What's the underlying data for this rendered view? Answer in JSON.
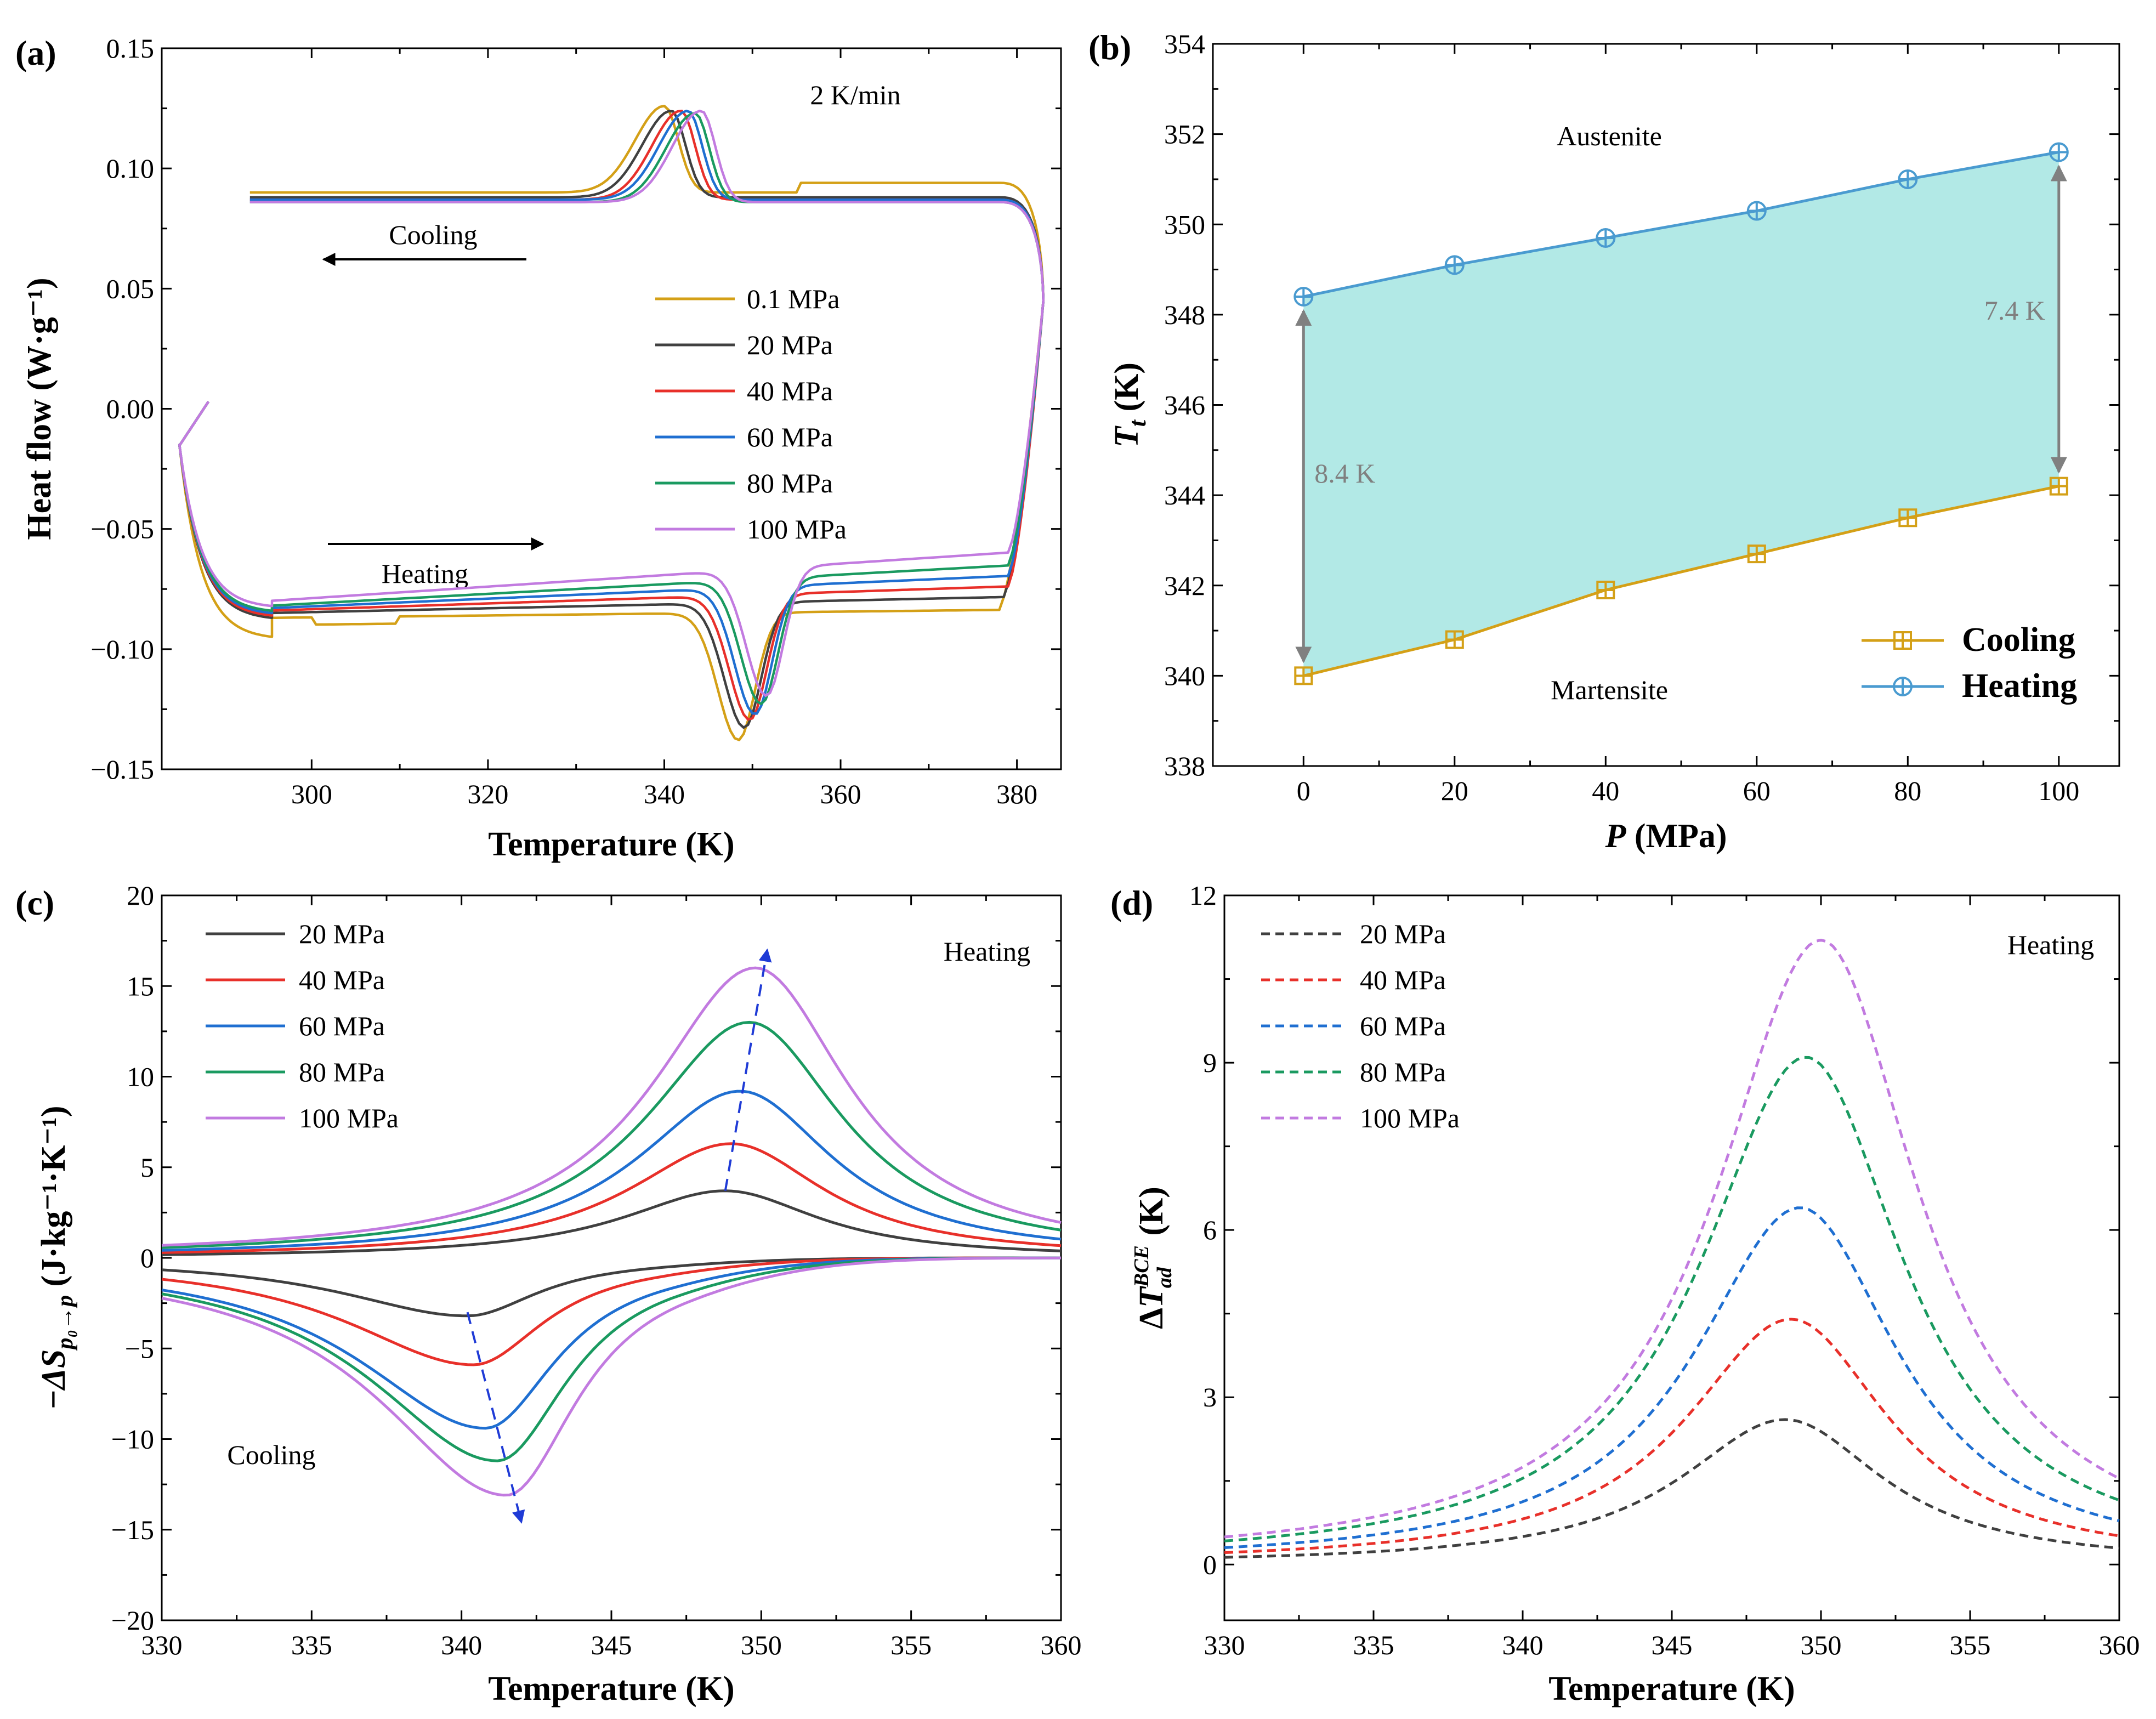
{
  "chart_data": [
    {
      "id": "a",
      "type": "line",
      "panel_label": "(a)",
      "xlabel": "Temperature (K)",
      "ylabel": "Heat flow (W·g⁻¹)",
      "xlim": [
        283,
        385
      ],
      "ylim": [
        -0.15,
        0.15
      ],
      "xticks": [
        300,
        320,
        340,
        360,
        380
      ],
      "yticks": [
        -0.15,
        -0.1,
        -0.05,
        0.0,
        0.05,
        0.1,
        0.15
      ],
      "ytick_labels": [
        "−0.15",
        "−0.10",
        "−0.05",
        "0.00",
        "0.05",
        "0.10",
        "0.15"
      ],
      "annotations": [
        "2 K/min",
        "Cooling",
        "Heating"
      ],
      "series": [
        {
          "name": "0.1 MPa",
          "color": "#d4a017",
          "cool_base": 0.09,
          "cool_peak": 0.126,
          "cool_T": 340,
          "heat_base": -0.087,
          "heat_peak": -0.14,
          "heat_T": 348.4,
          "turn_start": 378,
          "turn_end": 383
        },
        {
          "name": "20 MPa",
          "color": "#404040",
          "cool_base": 0.088,
          "cool_peak": 0.124,
          "cool_T": 340.8,
          "heat_base": -0.085,
          "heat_peak": -0.137,
          "heat_T": 349.1,
          "turn_start": 378.5,
          "turn_end": 383
        },
        {
          "name": "40 MPa",
          "color": "#e8302a",
          "cool_base": 0.087,
          "cool_peak": 0.124,
          "cool_T": 341.9,
          "heat_base": -0.084,
          "heat_peak": -0.136,
          "heat_T": 349.7,
          "turn_start": 379,
          "turn_end": 383
        },
        {
          "name": "60 MPa",
          "color": "#1f6fd1",
          "cool_base": 0.087,
          "cool_peak": 0.124,
          "cool_T": 342.7,
          "heat_base": -0.083,
          "heat_peak": -0.136,
          "heat_T": 350.3,
          "turn_start": 379,
          "turn_end": 383
        },
        {
          "name": "80 MPa",
          "color": "#1a9a60",
          "cool_base": 0.086,
          "cool_peak": 0.123,
          "cool_T": 343.5,
          "heat_base": -0.082,
          "heat_peak": -0.134,
          "heat_T": 351.0,
          "turn_start": 379,
          "turn_end": 383
        },
        {
          "name": "100 MPa",
          "color": "#c27be0",
          "cool_base": 0.086,
          "cool_peak": 0.124,
          "cool_T": 344.2,
          "heat_base": -0.08,
          "heat_peak": -0.133,
          "heat_T": 351.6,
          "turn_start": 379,
          "turn_end": 383
        }
      ]
    },
    {
      "id": "b",
      "type": "line",
      "panel_label": "(b)",
      "xlabel_italic": "P",
      "xlabel_rest": " (MPa)",
      "ylabel_main": "T",
      "ylabel_sub": "t",
      "ylabel_rest": " (K)",
      "xlim": [
        -12,
        108
      ],
      "ylim": [
        338,
        354
      ],
      "xticks": [
        0,
        20,
        40,
        60,
        80,
        100
      ],
      "yticks": [
        338,
        340,
        342,
        344,
        346,
        348,
        350,
        352,
        354
      ],
      "x": [
        0,
        20,
        40,
        60,
        80,
        100
      ],
      "fill_color": "#b2e9e6",
      "series": [
        {
          "name": "Cooling",
          "color": "#d4a017",
          "values": [
            340.0,
            340.8,
            341.9,
            342.7,
            343.5,
            344.2
          ]
        },
        {
          "name": "Heating",
          "color": "#4a9bd0",
          "values": [
            348.4,
            349.1,
            349.7,
            350.3,
            351.0,
            351.6
          ]
        }
      ],
      "annotations": [
        {
          "text": "Austenite"
        },
        {
          "text": "Martensite"
        },
        {
          "text": "8.4 K",
          "x": 0,
          "from": 348.4,
          "to": 340.0
        },
        {
          "text": "7.4 K",
          "x": 100,
          "from": 351.6,
          "to": 344.2
        }
      ],
      "arrow_color": "#808080"
    },
    {
      "id": "c",
      "type": "line",
      "panel_label": "(c)",
      "xlabel": "Temperature (K)",
      "ylabel_prefix": "−ΔS",
      "ylabel_sub": "p₀→p",
      "ylabel_units": " (J·kg⁻¹·K⁻¹)",
      "xlim": [
        330,
        360
      ],
      "ylim": [
        -20,
        20
      ],
      "xticks": [
        330,
        335,
        340,
        345,
        350,
        355,
        360
      ],
      "yticks": [
        -20,
        -15,
        -10,
        -5,
        0,
        5,
        10,
        15,
        20
      ],
      "ytick_labels": [
        "−20",
        "−15",
        "−10",
        "−5",
        "0",
        "5",
        "10",
        "15",
        "20"
      ],
      "annotations": [
        "Heating",
        "Cooling"
      ],
      "series": [
        {
          "name": "20 MPa",
          "color": "#404040",
          "heat_peak": 3.7,
          "heat_T": 348.8,
          "cool_peak": -3.2,
          "cool_T": 340.2
        },
        {
          "name": "40 MPa",
          "color": "#e8302a",
          "heat_peak": 6.3,
          "heat_T": 349.0,
          "cool_peak": -5.9,
          "cool_T": 340.4
        },
        {
          "name": "60 MPa",
          "color": "#1f6fd1",
          "heat_peak": 9.2,
          "heat_T": 349.3,
          "cool_peak": -9.4,
          "cool_T": 340.8
        },
        {
          "name": "80 MPa",
          "color": "#1a9a60",
          "heat_peak": 13.0,
          "heat_T": 349.6,
          "cool_peak": -11.2,
          "cool_T": 341.2
        },
        {
          "name": "100 MPa",
          "color": "#c27be0",
          "heat_peak": 16.0,
          "heat_T": 349.8,
          "cool_peak": -13.1,
          "cool_T": 341.5
        }
      ],
      "trend_arrows": [
        {
          "from": [
            348.8,
            3.7
          ],
          "to": [
            350.2,
            17.0
          ]
        },
        {
          "from": [
            340.2,
            -3.0
          ],
          "to": [
            342.0,
            -14.6
          ]
        }
      ]
    },
    {
      "id": "d",
      "type": "line",
      "panel_label": "(d)",
      "xlabel": "Temperature (K)",
      "ylabel_main": "ΔT",
      "ylabel_sup": "BCE",
      "ylabel_sub": "ad",
      "ylabel_rest": " (K)",
      "xlim": [
        330,
        360
      ],
      "ylim": [
        -1,
        12
      ],
      "xticks": [
        330,
        335,
        340,
        345,
        350,
        355,
        360
      ],
      "yticks": [
        0,
        3,
        6,
        9,
        12
      ],
      "annotations": [
        "Heating"
      ],
      "series": [
        {
          "name": "20 MPa",
          "color": "#404040",
          "peak": 2.6,
          "peak_T": 348.8
        },
        {
          "name": "40 MPa",
          "color": "#e8302a",
          "peak": 4.4,
          "peak_T": 349.0
        },
        {
          "name": "60 MPa",
          "color": "#1f6fd1",
          "peak": 6.4,
          "peak_T": 349.3
        },
        {
          "name": "80 MPa",
          "color": "#1a9a60",
          "peak": 9.1,
          "peak_T": 349.5
        },
        {
          "name": "100 MPa",
          "color": "#c27be0",
          "peak": 11.2,
          "peak_T": 350.0
        }
      ]
    }
  ]
}
